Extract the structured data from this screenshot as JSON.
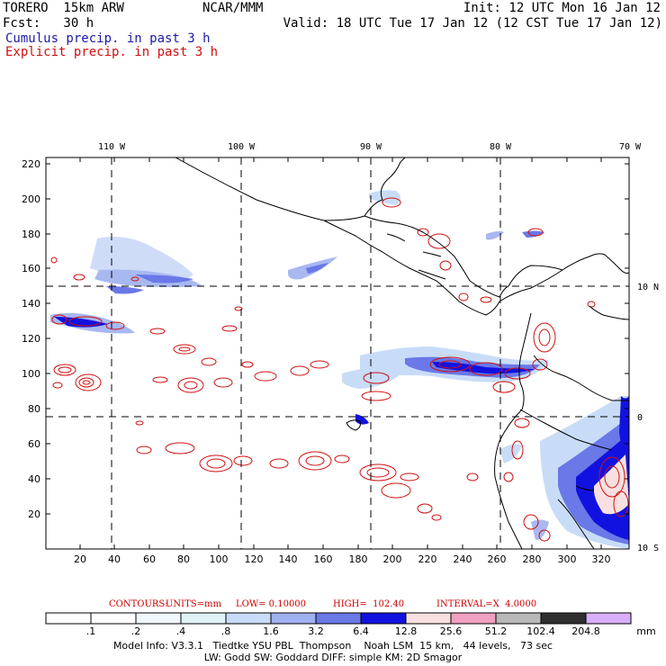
{
  "header": {
    "model": "TORERO  15km ARW",
    "org": "NCAR/MMM",
    "init": "Init: 12 UTC Mon 16 Jan 12",
    "fcst": "Fcst:   30 h",
    "valid": "Valid: 18 UTC Tue 17 Jan 12 (12 CST Tue 17 Jan 12)",
    "legend_cumulus": "Cumulus precip. in past 3 h",
    "legend_explicit": "Explicit precip. in past 3 h",
    "colors": {
      "cumulus": "#1a1aa8",
      "explicit": "#d01010"
    }
  },
  "map": {
    "lon_labels": [
      "110 W",
      "100 W",
      "90 W",
      "80 W",
      "70 W"
    ],
    "lat_labels": [
      "10 N",
      "0",
      "10 S"
    ],
    "y_ticks": [
      "220",
      "200",
      "180",
      "160",
      "140",
      "120",
      "100",
      "80",
      "60",
      "40",
      "20"
    ],
    "x_ticks": [
      "20",
      "40",
      "60",
      "80",
      "100",
      "120",
      "140",
      "160",
      "180",
      "200",
      "220",
      "240",
      "260",
      "280",
      "300",
      "320"
    ]
  },
  "contours_info": {
    "label": "CONTOURS:",
    "units": "UNITS=mm",
    "low": "LOW= 0.10000",
    "high": "HIGH=  102.40",
    "interval": "INTERVAL=X  4.0000"
  },
  "colorbar": {
    "labels": [
      ".1",
      ".2",
      ".4",
      ".8",
      "1.6",
      "3.2",
      "6.4",
      "12.8",
      "25.6",
      "51.2",
      "102.4",
      "204.8"
    ],
    "unit": "mm",
    "colors": [
      "#ffffff",
      "#ffffff",
      "#f0f8ff",
      "#e0f4f8",
      "#c8dcf8",
      "#a0b0f0",
      "#6a78e8",
      "#1212e0",
      "#f8e0e0",
      "#f0a0c0",
      "#b8b8b8",
      "#303030",
      "#d8b0f8"
    ]
  },
  "footer": {
    "line1": "Model Info: V3.3.1   Tiedtke YSU PBL  Thompson    Noah LSM  15 km,   44 levels,   73 sec",
    "line2": "LW: Godd SW: Goddard DIFF: simple KM: 2D Smagor"
  }
}
